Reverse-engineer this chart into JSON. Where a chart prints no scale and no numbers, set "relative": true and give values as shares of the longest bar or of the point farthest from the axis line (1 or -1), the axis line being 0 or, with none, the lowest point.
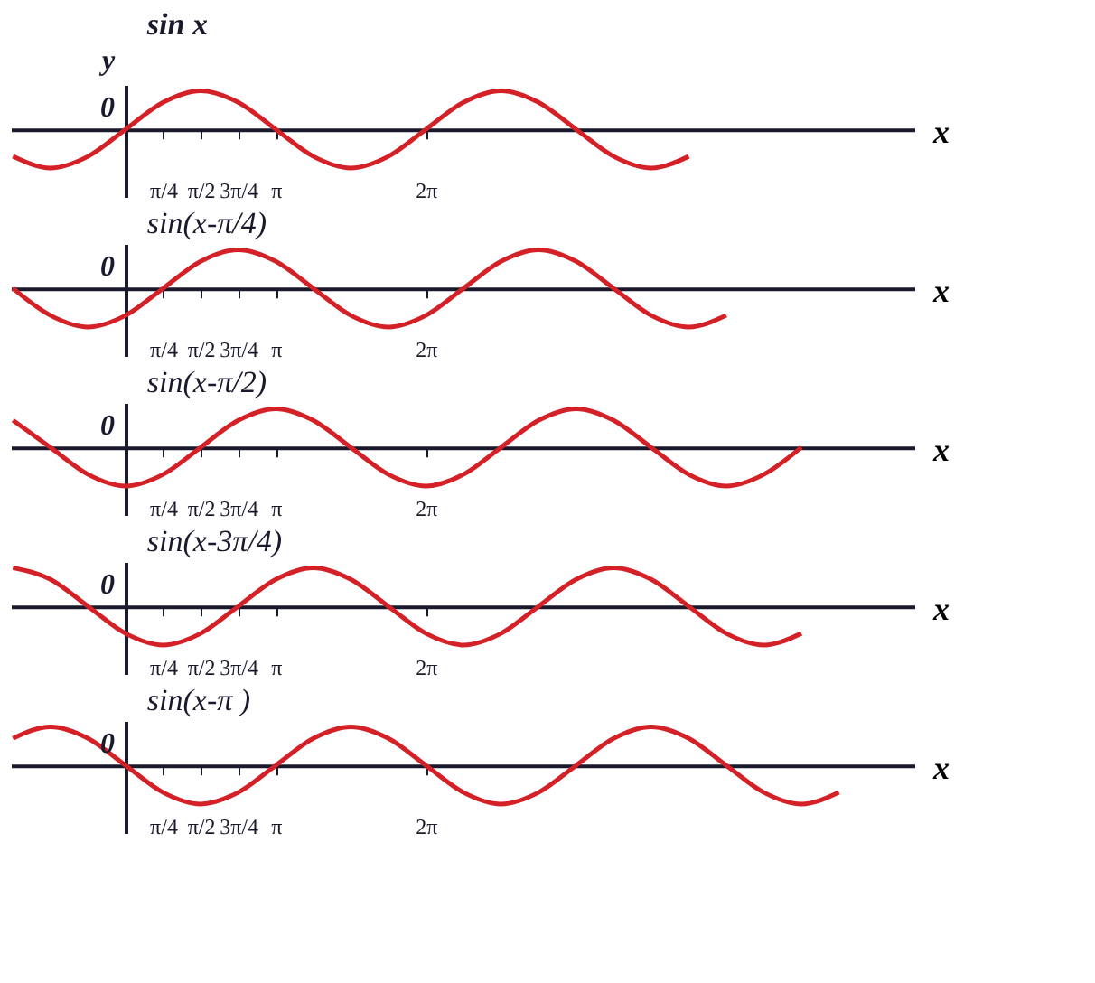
{
  "chart_data": [
    {
      "type": "line",
      "title": "sin x",
      "xlabel": "x",
      "ylabel": "y",
      "relative": true,
      "color": "#d42027",
      "marker": "none",
      "line_style": "solid",
      "grid": false,
      "annotations": [
        "0"
      ],
      "xlim": [
        -2.4,
        16.5
      ],
      "xticks": [
        {
          "value": 0.785,
          "label": "π/4"
        },
        {
          "value": 1.571,
          "label": "π/2"
        },
        {
          "value": 2.356,
          "label": "3π/4"
        },
        {
          "value": 3.142,
          "label": "π"
        },
        {
          "value": 6.283,
          "label": "2π"
        }
      ],
      "x": [
        -2.356,
        -1.571,
        -0.785,
        0,
        0.785,
        1.571,
        2.356,
        3.142,
        3.927,
        4.712,
        5.498,
        6.283,
        7.069,
        7.854,
        8.639,
        9.425,
        10.21,
        10.996,
        11.781
      ],
      "values": [
        -0.7,
        -1,
        -0.7,
        0,
        0.7,
        1,
        0.7,
        0,
        -0.7,
        -1,
        -0.7,
        0,
        0.7,
        1,
        0.7,
        0,
        -0.7,
        -1,
        -0.7
      ]
    },
    {
      "type": "line",
      "title": "sin(x-π/4)",
      "xlabel": "x",
      "relative": true,
      "color": "#d42027",
      "marker": "none",
      "line_style": "solid",
      "grid": false,
      "annotations": [
        "0"
      ],
      "xlim": [
        -2.4,
        16.5
      ],
      "xticks": [
        {
          "value": 0.785,
          "label": "π/4"
        },
        {
          "value": 1.571,
          "label": "π/2"
        },
        {
          "value": 2.356,
          "label": "3π/4"
        },
        {
          "value": 3.142,
          "label": "π"
        },
        {
          "value": 6.283,
          "label": "2π"
        }
      ],
      "x": [
        -2.356,
        -1.571,
        -0.785,
        0,
        0.785,
        1.571,
        2.356,
        3.142,
        3.927,
        4.712,
        5.498,
        6.283,
        7.069,
        7.854,
        8.639,
        9.425,
        10.21,
        10.996,
        11.781,
        12.566
      ],
      "values": [
        0,
        -0.7,
        -1,
        -0.7,
        0,
        0.7,
        1,
        0.7,
        0,
        -0.7,
        -1,
        -0.7,
        0,
        0.7,
        1,
        0.7,
        0,
        -0.7,
        -1,
        -0.7
      ]
    },
    {
      "type": "line",
      "title": "sin(x-π/2)",
      "xlabel": "x",
      "relative": true,
      "color": "#d42027",
      "marker": "none",
      "line_style": "solid",
      "grid": false,
      "annotations": [
        "0"
      ],
      "xlim": [
        -2.4,
        16.5
      ],
      "xticks": [
        {
          "value": 0.785,
          "label": "π/4"
        },
        {
          "value": 1.571,
          "label": "π/2"
        },
        {
          "value": 2.356,
          "label": "3π/4"
        },
        {
          "value": 3.142,
          "label": "π"
        },
        {
          "value": 6.283,
          "label": "2π"
        }
      ],
      "x": [
        -2.356,
        -1.571,
        -0.785,
        0,
        0.785,
        1.571,
        2.356,
        3.142,
        3.927,
        4.712,
        5.498,
        6.283,
        7.069,
        7.854,
        8.639,
        9.425,
        10.21,
        10.996,
        11.781,
        12.566,
        13.352,
        14.137
      ],
      "values": [
        0.7,
        0,
        -0.7,
        -1,
        -0.7,
        0,
        0.7,
        1,
        0.7,
        0,
        -0.7,
        -1,
        -0.7,
        0,
        0.7,
        1,
        0.7,
        0,
        -0.7,
        -1,
        -0.7,
        0
      ]
    },
    {
      "type": "line",
      "title": "sin(x-3π/4)",
      "xlabel": "x",
      "relative": true,
      "color": "#d42027",
      "marker": "none",
      "line_style": "solid",
      "grid": false,
      "annotations": [
        "0"
      ],
      "xlim": [
        -2.4,
        16.5
      ],
      "xticks": [
        {
          "value": 0.785,
          "label": "π/4"
        },
        {
          "value": 1.571,
          "label": "π/2"
        },
        {
          "value": 2.356,
          "label": "3π/4"
        },
        {
          "value": 3.142,
          "label": "π"
        },
        {
          "value": 6.283,
          "label": "2π"
        }
      ],
      "x": [
        -2.356,
        -1.571,
        -0.785,
        0,
        0.785,
        1.571,
        2.356,
        3.142,
        3.927,
        4.712,
        5.498,
        6.283,
        7.069,
        7.854,
        8.639,
        9.425,
        10.21,
        10.996,
        11.781,
        12.566,
        13.352,
        14.137
      ],
      "values": [
        1,
        0.7,
        0,
        -0.7,
        -1,
        -0.7,
        0,
        0.7,
        1,
        0.7,
        0,
        -0.7,
        -1,
        -0.7,
        0,
        0.7,
        1,
        0.7,
        0,
        -0.7,
        -1,
        -0.7
      ]
    },
    {
      "type": "line",
      "title": "sin(x-π )",
      "xlabel": "x",
      "relative": true,
      "color": "#d42027",
      "marker": "none",
      "line_style": "solid",
      "grid": false,
      "annotations": [
        "0"
      ],
      "xlim": [
        -2.4,
        16.5
      ],
      "xticks": [
        {
          "value": 0.785,
          "label": "π/4"
        },
        {
          "value": 1.571,
          "label": "π/2"
        },
        {
          "value": 2.356,
          "label": "3π/4"
        },
        {
          "value": 3.142,
          "label": "π"
        },
        {
          "value": 6.283,
          "label": "2π"
        }
      ],
      "x": [
        -2.356,
        -1.571,
        -0.785,
        0,
        0.785,
        1.571,
        2.356,
        3.142,
        3.927,
        4.712,
        5.498,
        6.283,
        7.069,
        7.854,
        8.639,
        9.425,
        10.21,
        10.996,
        11.781,
        12.566,
        13.352,
        14.137,
        14.923
      ],
      "values": [
        0.7,
        1,
        0.7,
        0,
        -0.7,
        -1,
        -0.7,
        0,
        0.7,
        1,
        0.7,
        0,
        -0.7,
        -1,
        -0.7,
        0,
        0.7,
        1,
        0.7,
        0,
        -0.7,
        -1,
        -0.7
      ]
    }
  ]
}
